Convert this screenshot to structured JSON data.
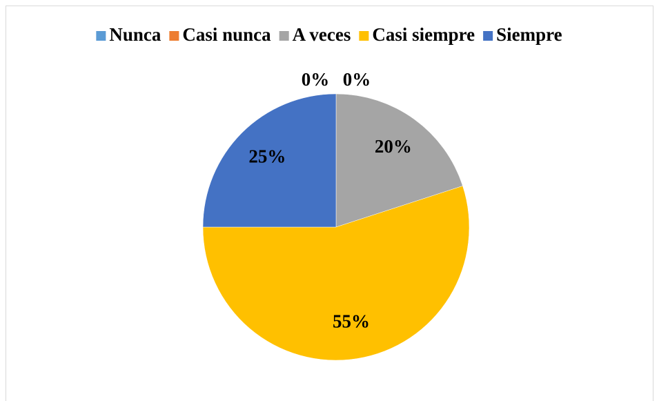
{
  "chart_data": {
    "type": "pie",
    "categories": [
      "Nunca",
      "Casi nunca",
      "A veces",
      "Casi siempre",
      "Siempre"
    ],
    "values": [
      0,
      0,
      20,
      55,
      25
    ],
    "value_labels": [
      "0%",
      "0%",
      "20%",
      "55%",
      "25%"
    ],
    "colors": [
      "#5b9bd5",
      "#ed7d31",
      "#a5a5a5",
      "#ffc000",
      "#4472c4"
    ],
    "legend": "top"
  }
}
